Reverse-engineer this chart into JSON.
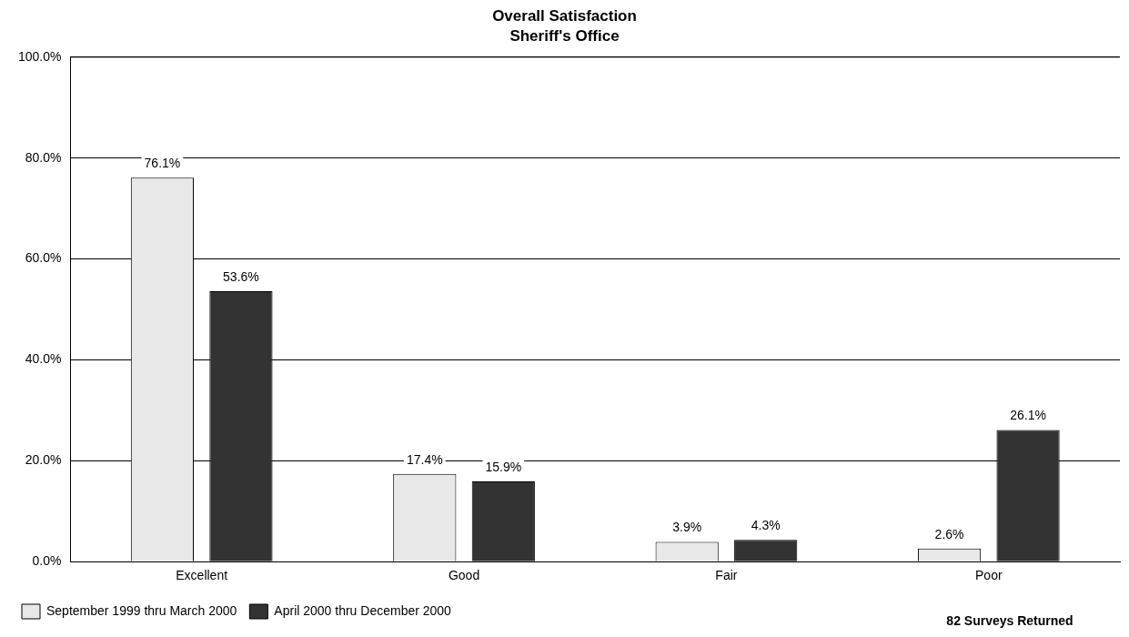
{
  "chart_data": {
    "type": "bar",
    "title": "Overall Satisfaction",
    "subtitle": "Sheriff's Office",
    "categories": [
      "Excellent",
      "Good",
      "Fair",
      "Poor"
    ],
    "series": [
      {
        "name": "September 1999 thru March 2000",
        "color": "#e8e8e8",
        "values": [
          76.1,
          17.4,
          3.9,
          2.6
        ],
        "value_labels": [
          "76.1%",
          "17.4%",
          "3.9%",
          "2.6%"
        ]
      },
      {
        "name": "April 2000 thru December 2000",
        "color": "#333333",
        "values": [
          53.6,
          15.9,
          4.3,
          26.1
        ],
        "value_labels": [
          "53.6%",
          "15.9%",
          "4.3%",
          "26.1%"
        ]
      }
    ],
    "ylim": [
      0,
      100
    ],
    "yticks": [
      {
        "value": 0,
        "label": "0.0%"
      },
      {
        "value": 20,
        "label": "20.0%"
      },
      {
        "value": 40,
        "label": "40.0%"
      },
      {
        "value": 60,
        "label": "60.0%"
      },
      {
        "value": 80,
        "label": "80.0%"
      },
      {
        "value": 100,
        "label": "100.0%"
      }
    ],
    "grid": "y",
    "legend": "bottom left",
    "annotations": [
      "82 Surveys Returned"
    ]
  }
}
